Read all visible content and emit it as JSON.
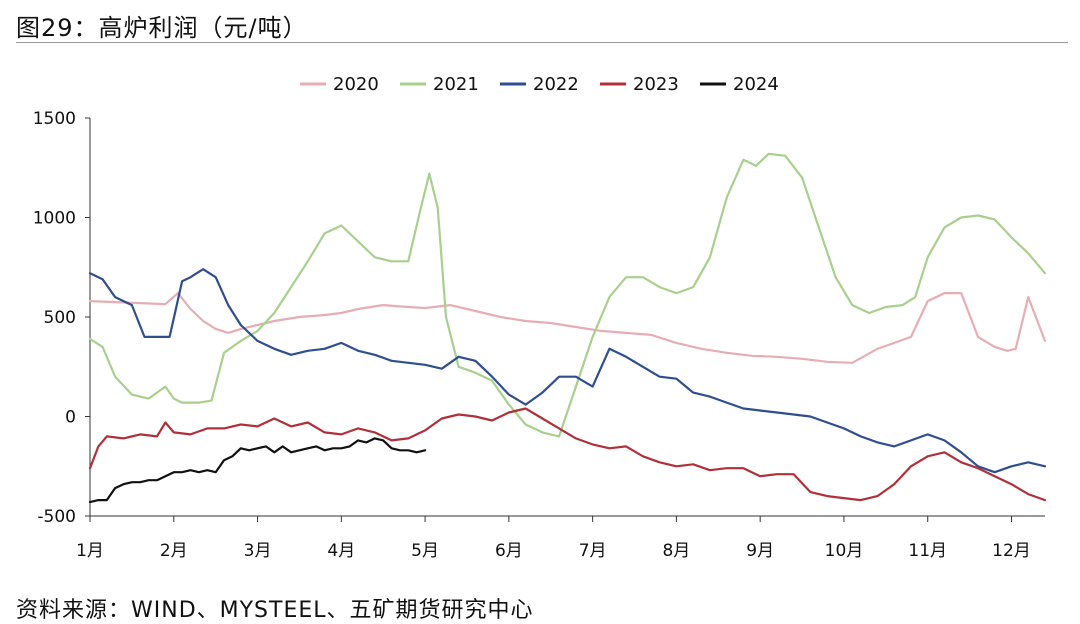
{
  "figure": {
    "title": "图29：高炉利润（元/吨）",
    "source": "资料来源：WIND、MYSTEEL、五矿期货研究中心"
  },
  "chart_data": {
    "type": "line",
    "title": "图29：高炉利润（元/吨）",
    "xlabel": "",
    "ylabel": "",
    "ylim": [
      -500,
      1500
    ],
    "yticks": [
      -500,
      0,
      500,
      1000,
      1500
    ],
    "xlim": [
      0,
      11.4
    ],
    "xticks": [
      {
        "value": 0,
        "label": "1月"
      },
      {
        "value": 1,
        "label": "2月"
      },
      {
        "value": 2,
        "label": "3月"
      },
      {
        "value": 3,
        "label": "4月"
      },
      {
        "value": 4,
        "label": "5月"
      },
      {
        "value": 5,
        "label": "6月"
      },
      {
        "value": 6,
        "label": "7月"
      },
      {
        "value": 7,
        "label": "8月"
      },
      {
        "value": 8,
        "label": "9月"
      },
      {
        "value": 9,
        "label": "10月"
      },
      {
        "value": 10,
        "label": "11月"
      },
      {
        "value": 11,
        "label": "12月"
      }
    ],
    "grid": false,
    "legend": "top",
    "series": [
      {
        "name": "2020",
        "color": "#e6adb4",
        "x": [
          0,
          0.3,
          0.6,
          0.9,
          1.05,
          1.2,
          1.35,
          1.5,
          1.65,
          1.8,
          2.0,
          2.2,
          2.5,
          2.8,
          3.0,
          3.2,
          3.5,
          3.8,
          4.0,
          4.3,
          4.6,
          4.9,
          5.2,
          5.5,
          5.8,
          6.1,
          6.4,
          6.7,
          7.0,
          7.3,
          7.6,
          7.9,
          8.2,
          8.5,
          8.8,
          9.1,
          9.4,
          9.6,
          9.8,
          10.0,
          10.2,
          10.4,
          10.6,
          10.8,
          10.95,
          11.05,
          11.2,
          11.4
        ],
        "values": [
          580,
          575,
          570,
          565,
          620,
          540,
          480,
          440,
          420,
          440,
          460,
          480,
          500,
          510,
          520,
          540,
          560,
          550,
          545,
          560,
          530,
          500,
          480,
          470,
          450,
          430,
          420,
          410,
          370,
          340,
          320,
          305,
          300,
          290,
          275,
          270,
          340,
          370,
          400,
          580,
          620,
          620,
          400,
          350,
          330,
          340,
          600,
          380
        ]
      },
      {
        "name": "2021",
        "color": "#a8d08d",
        "x": [
          0,
          0.15,
          0.3,
          0.5,
          0.7,
          0.9,
          1.0,
          1.1,
          1.3,
          1.45,
          1.6,
          1.8,
          2.0,
          2.2,
          2.4,
          2.6,
          2.8,
          3.0,
          3.2,
          3.4,
          3.6,
          3.8,
          3.95,
          4.05,
          4.15,
          4.25,
          4.4,
          4.6,
          4.8,
          5.0,
          5.2,
          5.4,
          5.6,
          5.8,
          6.0,
          6.2,
          6.4,
          6.6,
          6.8,
          7.0,
          7.2,
          7.4,
          7.6,
          7.8,
          7.95,
          8.1,
          8.3,
          8.5,
          8.7,
          8.9,
          9.1,
          9.3,
          9.5,
          9.7,
          9.85,
          10.0,
          10.2,
          10.4,
          10.6,
          10.8,
          11.0,
          11.2,
          11.4
        ],
        "values": [
          390,
          350,
          200,
          110,
          90,
          150,
          90,
          70,
          70,
          80,
          320,
          380,
          430,
          520,
          650,
          780,
          920,
          960,
          880,
          800,
          780,
          780,
          1050,
          1220,
          1050,
          500,
          250,
          220,
          180,
          60,
          -40,
          -80,
          -100,
          150,
          400,
          600,
          700,
          700,
          650,
          620,
          650,
          800,
          1100,
          1290,
          1260,
          1320,
          1310,
          1200,
          950,
          700,
          560,
          520,
          550,
          560,
          600,
          800,
          950,
          1000,
          1010,
          990,
          900,
          820,
          720
        ]
      },
      {
        "name": "2022",
        "color": "#2f4e8f",
        "x": [
          0,
          0.15,
          0.3,
          0.5,
          0.65,
          0.8,
          0.95,
          1.1,
          1.2,
          1.35,
          1.5,
          1.65,
          1.8,
          2.0,
          2.2,
          2.4,
          2.6,
          2.8,
          3.0,
          3.2,
          3.4,
          3.6,
          3.8,
          4.0,
          4.2,
          4.4,
          4.6,
          4.8,
          5.0,
          5.2,
          5.4,
          5.6,
          5.8,
          6.0,
          6.2,
          6.4,
          6.6,
          6.8,
          7.0,
          7.2,
          7.4,
          7.6,
          7.8,
          8.0,
          8.2,
          8.4,
          8.6,
          8.8,
          9.0,
          9.2,
          9.4,
          9.6,
          9.8,
          10.0,
          10.2,
          10.4,
          10.6,
          10.8,
          11.0,
          11.2,
          11.4
        ],
        "values": [
          720,
          690,
          600,
          560,
          400,
          400,
          400,
          680,
          700,
          740,
          700,
          560,
          460,
          380,
          340,
          310,
          330,
          340,
          370,
          330,
          310,
          280,
          270,
          260,
          240,
          300,
          280,
          200,
          110,
          60,
          120,
          200,
          200,
          150,
          340,
          300,
          250,
          200,
          190,
          120,
          100,
          70,
          40,
          30,
          20,
          10,
          0,
          -30,
          -60,
          -100,
          -130,
          -150,
          -120,
          -90,
          -120,
          -180,
          -250,
          -280,
          -250,
          -230,
          -250
        ]
      },
      {
        "name": "2023",
        "color": "#b0303a",
        "x": [
          0,
          0.1,
          0.2,
          0.4,
          0.6,
          0.8,
          0.9,
          1.0,
          1.2,
          1.4,
          1.6,
          1.8,
          2.0,
          2.2,
          2.4,
          2.6,
          2.8,
          3.0,
          3.2,
          3.4,
          3.6,
          3.8,
          4.0,
          4.2,
          4.4,
          4.6,
          4.8,
          5.0,
          5.2,
          5.4,
          5.6,
          5.8,
          6.0,
          6.2,
          6.4,
          6.6,
          6.8,
          7.0,
          7.2,
          7.4,
          7.6,
          7.8,
          8.0,
          8.2,
          8.4,
          8.6,
          8.8,
          9.0,
          9.2,
          9.4,
          9.6,
          9.8,
          10.0,
          10.2,
          10.4,
          10.6,
          10.8,
          11.0,
          11.2,
          11.4
        ],
        "values": [
          -260,
          -150,
          -100,
          -110,
          -90,
          -100,
          -30,
          -80,
          -90,
          -60,
          -60,
          -40,
          -50,
          -10,
          -50,
          -30,
          -80,
          -90,
          -60,
          -80,
          -120,
          -110,
          -70,
          -10,
          10,
          0,
          -20,
          20,
          40,
          -10,
          -60,
          -110,
          -140,
          -160,
          -150,
          -200,
          -230,
          -250,
          -240,
          -270,
          -260,
          -260,
          -300,
          -290,
          -290,
          -380,
          -400,
          -410,
          -420,
          -400,
          -340,
          -250,
          -200,
          -180,
          -230,
          -260,
          -300,
          -340,
          -390,
          -420
        ]
      },
      {
        "name": "2024",
        "color": "#111111",
        "x": [
          0,
          0.1,
          0.2,
          0.3,
          0.4,
          0.5,
          0.6,
          0.7,
          0.8,
          0.9,
          1.0,
          1.1,
          1.2,
          1.3,
          1.4,
          1.5,
          1.6,
          1.7,
          1.8,
          1.9,
          2.0,
          2.1,
          2.2,
          2.3,
          2.4,
          2.5,
          2.6,
          2.7,
          2.8,
          2.9,
          3.0,
          3.1,
          3.2,
          3.3,
          3.4,
          3.5,
          3.6,
          3.7,
          3.8,
          3.9,
          4.0
        ],
        "values": [
          -430,
          -420,
          -420,
          -360,
          -340,
          -330,
          -330,
          -320,
          -320,
          -300,
          -280,
          -280,
          -270,
          -280,
          -270,
          -280,
          -220,
          -200,
          -160,
          -170,
          -160,
          -150,
          -180,
          -150,
          -180,
          -170,
          -160,
          -150,
          -170,
          -160,
          -160,
          -150,
          -120,
          -130,
          -110,
          -120,
          -160,
          -170,
          -170,
          -180,
          -170
        ]
      }
    ]
  }
}
